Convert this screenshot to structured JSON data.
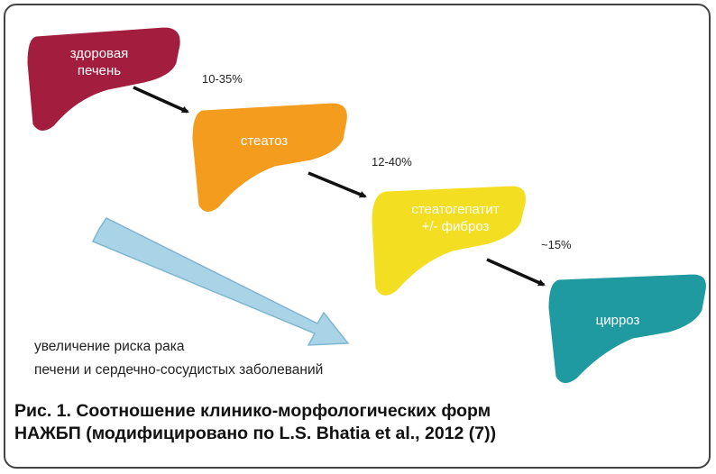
{
  "stages": [
    {
      "label_lines": [
        "здоровая",
        "печень"
      ],
      "color": "#a31e3e"
    },
    {
      "label_lines": [
        "стеатоз"
      ],
      "color": "#f39c1e"
    },
    {
      "label_lines": [
        "стеатогепатит",
        "+/- фиброз"
      ],
      "color": "#f3de22"
    },
    {
      "label_lines": [
        "цирроз"
      ],
      "color": "#1f9aa0"
    }
  ],
  "transitions": [
    {
      "label": "10-35%"
    },
    {
      "label": "12-40%"
    },
    {
      "label": "~15%"
    }
  ],
  "risk_arrow": {
    "color": "#a9d3e6",
    "text_lines": [
      "увеличение риска рака",
      "печени и сердечно-сосудистых заболеваний"
    ]
  },
  "caption": {
    "line1": "Рис. 1. Соотношение клинико-морфологических форм",
    "line2": "НАЖБП (модифицировано по L.S. Bhatia et al., 2012 (7))"
  }
}
